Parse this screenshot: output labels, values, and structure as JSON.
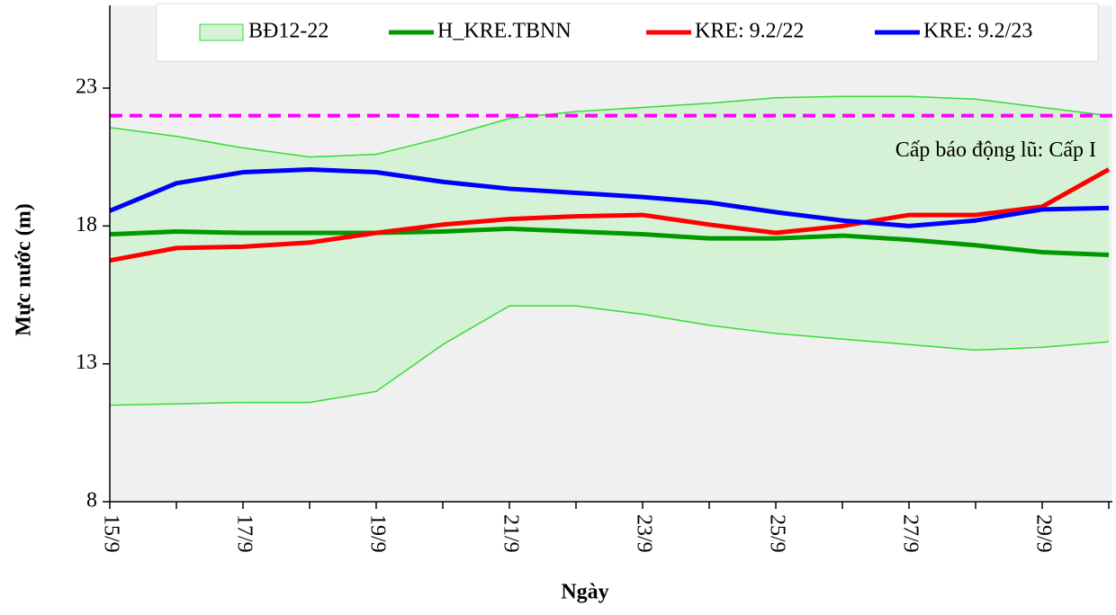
{
  "chart_data": {
    "type": "line",
    "x_label": "Ngày",
    "y_label": "Mực nước (m)",
    "categories": [
      "15/9",
      null,
      "17/9",
      null,
      "19/9",
      null,
      "21/9",
      null,
      "23/9",
      null,
      "25/9",
      null,
      "27/9",
      null,
      "29/9",
      null
    ],
    "ylim": [
      8,
      26
    ],
    "yticks": [
      8,
      13,
      18,
      23
    ],
    "grid": false,
    "band": {
      "name": "BĐ12-22",
      "color": "#33dd33",
      "upper": [
        21.57,
        21.25,
        20.83,
        20.5,
        20.6,
        21.2,
        21.9,
        22.15,
        22.3,
        22.45,
        22.65,
        22.7,
        22.7,
        22.6,
        22.3,
        22.0
      ],
      "lower": [
        11.5,
        11.55,
        11.6,
        11.6,
        12.0,
        13.7,
        15.1,
        15.1,
        14.8,
        14.4,
        14.1,
        13.9,
        13.7,
        13.5,
        13.6,
        13.8
      ]
    },
    "series": [
      {
        "name": "H_KRE.TBNN",
        "color": "#009900",
        "values": [
          17.7,
          17.8,
          17.75,
          17.75,
          17.75,
          17.8,
          17.9,
          17.8,
          17.7,
          17.55,
          17.55,
          17.65,
          17.5,
          17.3,
          17.05,
          16.95
        ]
      },
      {
        "name": "KRE: 9.2/22",
        "color": "#ff0000",
        "values": [
          16.75,
          17.2,
          17.25,
          17.4,
          17.75,
          18.05,
          18.25,
          18.35,
          18.4,
          18.05,
          17.75,
          18.0,
          18.4,
          18.4,
          18.7,
          20.05
        ]
      },
      {
        "name": "KRE: 9.2/23",
        "color": "#0000ff",
        "values": [
          18.55,
          19.55,
          19.95,
          20.05,
          19.95,
          19.6,
          19.35,
          19.2,
          19.05,
          18.85,
          18.5,
          18.2,
          18.0,
          18.2,
          18.6,
          18.65
        ]
      }
    ],
    "alarm": {
      "value": 22.0,
      "label": "Cấp báo động lũ: Cấp I",
      "color": "#ff00ff"
    }
  }
}
